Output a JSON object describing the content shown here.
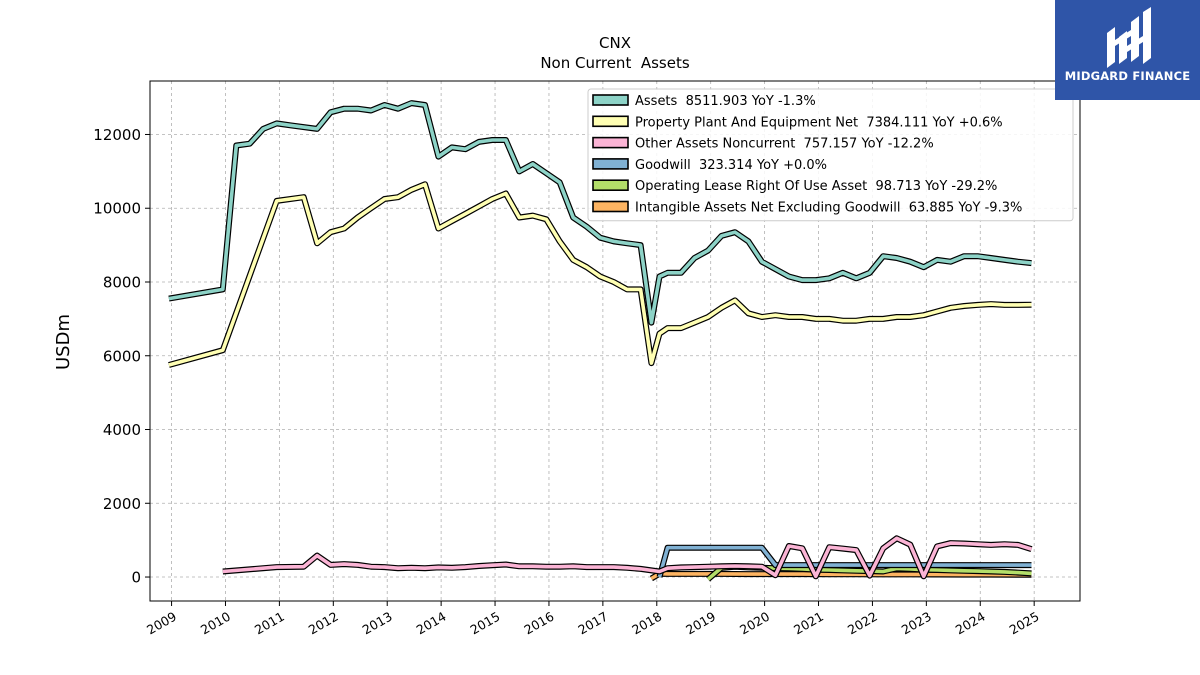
{
  "chart_data": {
    "type": "line",
    "title": "CNX",
    "subtitle": "Non Current  Assets",
    "ylabel": "USDm",
    "xlabel": "",
    "xlim": [
      2008.6,
      2025.85
    ],
    "ylim": [
      -650,
      13450
    ],
    "yticks": [
      0,
      2000,
      4000,
      6000,
      8000,
      10000,
      12000
    ],
    "ytick_labels": [
      "0",
      "2000",
      "4000",
      "6000",
      "8000",
      "10000",
      "12000"
    ],
    "xticks": [
      2009,
      2010,
      2011,
      2012,
      2013,
      2014,
      2015,
      2016,
      2017,
      2018,
      2019,
      2020,
      2021,
      2022,
      2023,
      2024,
      2025
    ],
    "xtick_labels": [
      "2009",
      "2010",
      "2011",
      "2012",
      "2013",
      "2014",
      "2015",
      "2016",
      "2017",
      "2018",
      "2019",
      "2020",
      "2021",
      "2022",
      "2023",
      "2024",
      "2025"
    ],
    "grid": true,
    "legend_position": "top-right",
    "series": [
      {
        "name": "Assets  8511.903 YoY -1.3%",
        "color": "#8dd3c7",
        "x": [
          2008.95,
          2009.95,
          2010.2,
          2010.45,
          2010.7,
          2010.95,
          2011.2,
          2011.7,
          2011.95,
          2012.2,
          2012.45,
          2012.7,
          2012.95,
          2013.2,
          2013.45,
          2013.7,
          2013.95,
          2014.2,
          2014.45,
          2014.7,
          2014.95,
          2015.2,
          2015.45,
          2015.7,
          2015.95,
          2016.2,
          2016.45,
          2016.7,
          2016.95,
          2017.2,
          2017.45,
          2017.7,
          2017.9,
          2018.05,
          2018.2,
          2018.45,
          2018.7,
          2018.95,
          2019.2,
          2019.45,
          2019.7,
          2019.95,
          2020.2,
          2020.45,
          2020.7,
          2020.95,
          2021.2,
          2021.45,
          2021.7,
          2021.95,
          2022.2,
          2022.45,
          2022.7,
          2022.95,
          2023.2,
          2023.45,
          2023.7,
          2023.95,
          2024.2,
          2024.45,
          2024.7,
          2024.95
        ],
        "y": [
          7550,
          7800,
          11700,
          11750,
          12150,
          12300,
          12250,
          12150,
          12600,
          12700,
          12700,
          12650,
          12800,
          12700,
          12850,
          12800,
          11400,
          11650,
          11600,
          11800,
          11850,
          11850,
          11000,
          11200,
          10950,
          10700,
          9750,
          9500,
          9200,
          9100,
          9050,
          9000,
          6900,
          8150,
          8250,
          8250,
          8650,
          8850,
          9250,
          9350,
          9100,
          8550,
          8350,
          8150,
          8050,
          8050,
          8100,
          8250,
          8100,
          8250,
          8700,
          8650,
          8550,
          8400,
          8600,
          8550,
          8700,
          8700,
          8650,
          8600,
          8550,
          8512
        ]
      },
      {
        "name": "Property Plant And Equipment Net  7384.111 YoY +0.6%",
        "color": "#ffffb3",
        "x": [
          2008.95,
          2009.95,
          2010.95,
          2011.45,
          2011.7,
          2011.95,
          2012.2,
          2012.45,
          2012.7,
          2012.95,
          2013.2,
          2013.45,
          2013.7,
          2013.95,
          2014.2,
          2014.45,
          2014.7,
          2014.95,
          2015.2,
          2015.45,
          2015.7,
          2015.95,
          2016.2,
          2016.45,
          2016.7,
          2016.95,
          2017.2,
          2017.45,
          2017.7,
          2017.9,
          2018.05,
          2018.2,
          2018.45,
          2018.7,
          2018.95,
          2019.2,
          2019.45,
          2019.7,
          2019.95,
          2020.2,
          2020.45,
          2020.7,
          2020.95,
          2021.2,
          2021.45,
          2021.7,
          2021.95,
          2022.2,
          2022.45,
          2022.7,
          2022.95,
          2023.2,
          2023.45,
          2023.7,
          2023.95,
          2024.2,
          2024.45,
          2024.7,
          2024.95
        ],
        "y": [
          5750,
          6150,
          10200,
          10300,
          9050,
          9350,
          9450,
          9750,
          10000,
          10250,
          10300,
          10500,
          10650,
          9450,
          9650,
          9850,
          10050,
          10250,
          10400,
          9750,
          9800,
          9700,
          9100,
          8600,
          8400,
          8150,
          8000,
          7800,
          7800,
          5800,
          6600,
          6750,
          6750,
          6900,
          7050,
          7300,
          7500,
          7150,
          7050,
          7100,
          7050,
          7050,
          7000,
          7000,
          6950,
          6950,
          7000,
          7000,
          7050,
          7050,
          7100,
          7200,
          7300,
          7350,
          7380,
          7400,
          7380,
          7380,
          7384
        ]
      },
      {
        "name": "Other Assets Noncurrent  757.157 YoY -12.2%",
        "color": "#fbb4d5",
        "x": [
          2009.95,
          2010.95,
          2011.45,
          2011.7,
          2011.95,
          2012.2,
          2012.45,
          2012.7,
          2012.95,
          2013.2,
          2013.45,
          2013.7,
          2013.95,
          2014.2,
          2014.45,
          2014.7,
          2014.95,
          2015.2,
          2015.45,
          2015.7,
          2015.95,
          2016.2,
          2016.45,
          2016.7,
          2016.95,
          2017.2,
          2017.45,
          2017.7,
          2017.9,
          2018.05,
          2018.2,
          2018.45,
          2018.7,
          2018.95,
          2019.2,
          2019.45,
          2019.7,
          2019.95,
          2020.2,
          2020.45,
          2020.7,
          2020.95,
          2021.2,
          2021.45,
          2021.7,
          2021.95,
          2022.2,
          2022.45,
          2022.7,
          2022.95,
          2023.2,
          2023.45,
          2023.7,
          2023.95,
          2024.2,
          2024.45,
          2024.7,
          2024.95
        ],
        "y": [
          150,
          270,
          280,
          580,
          330,
          350,
          330,
          280,
          270,
          240,
          250,
          240,
          260,
          250,
          270,
          300,
          320,
          340,
          290,
          290,
          280,
          280,
          290,
          270,
          270,
          270,
          250,
          220,
          180,
          150,
          240,
          260,
          270,
          280,
          290,
          300,
          290,
          280,
          50,
          840,
          780,
          20,
          810,
          770,
          730,
          40,
          780,
          1050,
          880,
          20,
          830,
          920,
          910,
          890,
          870,
          890,
          870,
          757
        ]
      },
      {
        "name": "Goodwill  323.314 YoY +0.0%",
        "color": "#80b1d3",
        "x": [
          2018.05,
          2018.2,
          2019.95,
          2020.2,
          2024.95
        ],
        "y": [
          0,
          795,
          795,
          323,
          323
        ]
      },
      {
        "name": "Operating Lease Right Of Use Asset  98.713 YoY -29.2%",
        "color": "#b3de69",
        "x": [
          2018.95,
          2019.2,
          2019.45,
          2019.7,
          2019.95,
          2020.2,
          2020.45,
          2020.7,
          2020.95,
          2021.2,
          2021.45,
          2021.7,
          2021.95,
          2022.2,
          2022.45,
          2022.7,
          2022.95,
          2023.2,
          2023.45,
          2023.7,
          2023.95,
          2024.2,
          2024.45,
          2024.7,
          2024.95
        ],
        "y": [
          -60,
          250,
          280,
          260,
          250,
          240,
          230,
          220,
          200,
          190,
          180,
          170,
          160,
          150,
          230,
          220,
          200,
          190,
          180,
          170,
          160,
          150,
          140,
          120,
          99
        ]
      },
      {
        "name": "Intangible Assets Net Excluding Goodwill  63.885 YoY -9.3%",
        "color": "#fdb462",
        "x": [
          2017.9,
          2018.05,
          2018.2,
          2018.7,
          2019.2,
          2019.7,
          2020.2,
          2020.7,
          2021.2,
          2021.7,
          2022.2,
          2022.7,
          2023.2,
          2023.7,
          2024.2,
          2024.7,
          2024.95
        ],
        "y": [
          -40,
          90,
          85,
          85,
          85,
          80,
          80,
          80,
          75,
          75,
          70,
          70,
          68,
          66,
          65,
          64,
          64
        ]
      }
    ]
  },
  "logo": {
    "text": "MIDGARD FINANCE"
  }
}
